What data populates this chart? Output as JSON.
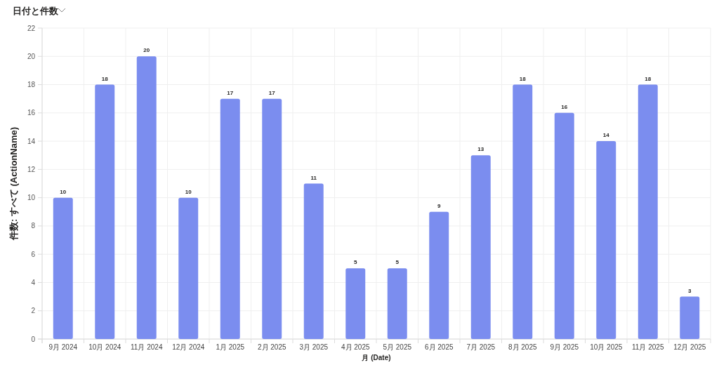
{
  "chart_data": {
    "type": "bar",
    "title": "日付と件数",
    "xlabel": "月 (Date)",
    "ylabel": "件数: すべて (ActionName)",
    "categories": [
      "9月 2024",
      "10月 2024",
      "11月 2024",
      "12月 2024",
      "1月 2025",
      "2月 2025",
      "3月 2025",
      "4月 2025",
      "5月 2025",
      "6月 2025",
      "7月 2025",
      "8月 2025",
      "9月 2025",
      "10月 2025",
      "11月 2025",
      "12月 2025"
    ],
    "values": [
      10,
      18,
      20,
      10,
      17,
      17,
      11,
      5,
      5,
      9,
      13,
      18,
      16,
      14,
      18,
      3
    ],
    "color": "#7b8def",
    "ylim": [
      0,
      22
    ],
    "yticks": [
      0,
      2,
      4,
      6,
      8,
      10,
      12,
      14,
      16,
      18,
      20,
      22
    ],
    "grid": true,
    "data_labels": true
  }
}
